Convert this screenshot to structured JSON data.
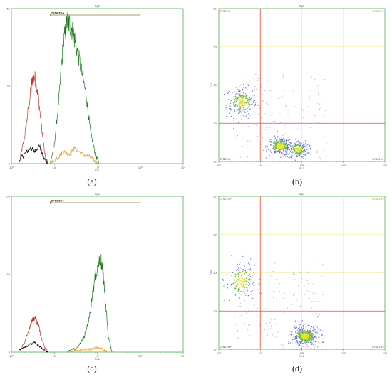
{
  "colors": {
    "frame": "#4caf50",
    "title_green": "#2a9d2a",
    "sample_green": "#1f7a1f",
    "control_red": "#c0392b",
    "control_black": "#111111",
    "control_orange": "#f39c12",
    "quad_line": "#e74c3c",
    "grid_yellow": "#f1e78a",
    "gate_bar": "#8a7a2a"
  },
  "chart_data": [
    {
      "panel": "a",
      "type": "area",
      "title": "Spz",
      "caption": "(a)",
      "xlabel": "FL1",
      "xscale": "log",
      "xlim": [
        1,
        10000
      ],
      "xticks": [
        "10⁰",
        "10¹",
        "10²",
        "10³",
        "10⁴"
      ],
      "ylim": [
        0,
        50
      ],
      "yticks": [
        "0",
        "25",
        "50"
      ],
      "gate": {
        "label": "CFSE1%+",
        "range": [
          8,
          1000
        ]
      },
      "series": [
        {
          "color": "control_red",
          "x": [
            1.6,
            2.0,
            2.5,
            3.0,
            3.5,
            4.2,
            5.0,
            6.0,
            7.0
          ],
          "values": [
            2,
            8,
            18,
            26,
            28,
            22,
            12,
            3,
            0
          ]
        },
        {
          "color": "control_black",
          "x": [
            1.5,
            2.0,
            2.8,
            3.5,
            4.5,
            5.5,
            7.0
          ],
          "values": [
            1,
            3,
            5,
            4,
            6,
            2,
            0
          ]
        },
        {
          "color": "sample_green",
          "x": [
            8,
            10,
            13,
            16,
            20,
            25,
            30,
            40,
            55,
            70,
            90,
            110
          ],
          "values": [
            0,
            6,
            22,
            38,
            46,
            44,
            40,
            32,
            22,
            10,
            3,
            0
          ]
        },
        {
          "color": "control_orange",
          "x": [
            8,
            12,
            16,
            22,
            30,
            45,
            70,
            100
          ],
          "values": [
            0,
            2,
            4,
            3,
            5,
            3,
            2,
            0
          ]
        }
      ]
    },
    {
      "panel": "b",
      "type": "scatter",
      "title": "Spz",
      "caption": "(b)",
      "xlabel": "FL1",
      "ylabel": "FL3",
      "xscale": "log",
      "yscale": "log",
      "xlim": [
        1,
        10000
      ],
      "ylim": [
        1,
        10000
      ],
      "xticks": [
        "10⁰",
        "10¹",
        "10²",
        "10³",
        "10⁴"
      ],
      "yticks": [
        "10⁰",
        "10¹",
        "10²",
        "10³",
        "10⁴"
      ],
      "quadrant_lines": {
        "x": 10,
        "y": 10
      },
      "quadrant_labels": {
        "ul": "CFSE1%+",
        "ur": "CFSE1%+",
        "ll": "CFSE1%+",
        "lr": "CFSE1%+"
      },
      "clusters": [
        {
          "x": 3.5,
          "y": 35,
          "spread_x": 0.18,
          "spread_y": 0.2,
          "n": 220
        },
        {
          "x": 30,
          "y": 2.5,
          "spread_x": 0.15,
          "spread_y": 0.12,
          "n": 300
        },
        {
          "x": 80,
          "y": 2.0,
          "spread_x": 0.13,
          "spread_y": 0.12,
          "n": 220
        }
      ]
    },
    {
      "panel": "c",
      "type": "area",
      "title": "Spz",
      "caption": "(c)",
      "xlabel": "FL1",
      "xscale": "log",
      "xlim": [
        1,
        10000
      ],
      "ylim": [
        0,
        100
      ],
      "xticks": [
        "10⁰",
        "10¹",
        "10²",
        "10³",
        "10⁴"
      ],
      "yticks": [
        "0",
        "50",
        "100"
      ],
      "gate": {
        "label": "CFSE1%+",
        "range": [
          8,
          1000
        ]
      },
      "series": [
        {
          "color": "control_red",
          "x": [
            1.6,
            2.0,
            2.5,
            3.0,
            3.5,
            4.2,
            5.0,
            6.0,
            7.0
          ],
          "values": [
            1,
            6,
            14,
            20,
            22,
            18,
            9,
            3,
            0
          ]
        },
        {
          "color": "control_black",
          "x": [
            1.5,
            2.0,
            2.8,
            3.5,
            4.5,
            5.5,
            7.0
          ],
          "values": [
            1,
            3,
            5,
            6,
            4,
            2,
            0
          ]
        },
        {
          "color": "sample_green",
          "x": [
            20,
            35,
            50,
            65,
            80,
            100,
            120,
            140,
            160,
            180,
            220
          ],
          "values": [
            0,
            3,
            10,
            22,
            40,
            55,
            60,
            48,
            28,
            10,
            0
          ]
        },
        {
          "color": "control_orange",
          "x": [
            20,
            40,
            70,
            100,
            130,
            170
          ],
          "values": [
            0,
            1,
            2,
            3,
            2,
            0
          ]
        }
      ]
    },
    {
      "panel": "d",
      "type": "scatter",
      "title": "Spz",
      "caption": "(d)",
      "xlabel": "FL1",
      "ylabel": "FL3",
      "xscale": "log",
      "yscale": "log",
      "xlim": [
        1,
        10000
      ],
      "ylim": [
        1,
        10000
      ],
      "xticks": [
        "10⁰",
        "10¹",
        "10²",
        "10³",
        "10⁴"
      ],
      "yticks": [
        "10⁰",
        "10¹",
        "10²",
        "10³",
        "10⁴"
      ],
      "quadrant_lines": {
        "x": 10,
        "y": 10
      },
      "quadrant_labels": {
        "ul": "CFSE1%+",
        "ur": "CFSE1%+",
        "ll": "CFSE1%+",
        "lr": "CFSE1%+"
      },
      "clusters": [
        {
          "x": 3.5,
          "y": 60,
          "spread_x": 0.2,
          "spread_y": 0.25,
          "n": 160
        },
        {
          "x": 120,
          "y": 2.2,
          "spread_x": 0.16,
          "spread_y": 0.14,
          "n": 420
        }
      ]
    }
  ]
}
